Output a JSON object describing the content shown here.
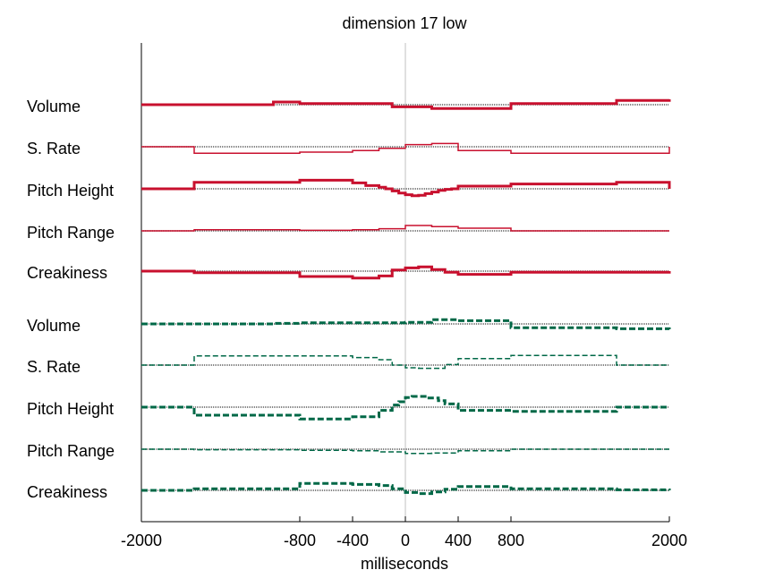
{
  "chart_data": {
    "type": "line",
    "title": "dimension 17 low",
    "xlabel": "milliseconds",
    "ylabel": "",
    "xlim": [
      -2000,
      2000
    ],
    "x_ticks": [
      -2000,
      -800,
      -400,
      0,
      400,
      800,
      2000
    ],
    "x_tick_labels": [
      "-2000",
      "-800",
      "-400",
      "0",
      "400",
      "800",
      "2000"
    ],
    "vertical_reference_line_at": 0,
    "colors": {
      "group1": "#c8102e",
      "group2": "#006847",
      "baseline": "#555555",
      "zero_line": "#c0c0c0"
    },
    "line_styles": {
      "group1": "solid",
      "group2": "dashed"
    },
    "series": [
      {
        "row": "Volume",
        "group": 1,
        "weight": "thick",
        "x": [
          -2000,
          -1000,
          -800,
          -100,
          200,
          800,
          1600,
          2000
        ],
        "values": [
          0,
          0.5,
          0.2,
          -0.4,
          -0.7,
          0.2,
          0.8,
          1.0
        ]
      },
      {
        "row": "S. Rate",
        "group": 1,
        "weight": "thin",
        "x": [
          -2000,
          -1600,
          -800,
          -400,
          -200,
          0,
          200,
          400,
          800,
          1600,
          2000
        ],
        "values": [
          0,
          -1.2,
          -1.0,
          -0.7,
          -0.3,
          0.4,
          0.6,
          -0.7,
          -1.2,
          -1.2,
          0
        ]
      },
      {
        "row": "Pitch Height",
        "group": 1,
        "weight": "thick",
        "x": [
          -2000,
          -1600,
          -800,
          -400,
          -300,
          -200,
          -150,
          -100,
          -50,
          0,
          50,
          100,
          150,
          200,
          250,
          300,
          350,
          400,
          800,
          1600,
          2000
        ],
        "values": [
          0,
          1.2,
          1.6,
          1.1,
          0.6,
          0.3,
          0.0,
          -0.4,
          -0.8,
          -1.1,
          -1.3,
          -1.2,
          -0.9,
          -0.6,
          -0.3,
          -0.1,
          0.0,
          0.5,
          0.9,
          1.2,
          0
        ]
      },
      {
        "row": "Pitch Range",
        "group": 1,
        "weight": "thin",
        "x": [
          -2000,
          -1600,
          -800,
          -400,
          -200,
          0,
          200,
          400,
          800,
          1600,
          2000
        ],
        "values": [
          0,
          0.2,
          0.1,
          0.2,
          0.4,
          1.0,
          0.8,
          0.5,
          0,
          0,
          0
        ]
      },
      {
        "row": "Creakiness",
        "group": 1,
        "weight": "thick",
        "x": [
          -2000,
          -1600,
          -800,
          -400,
          -200,
          -100,
          0,
          100,
          200,
          300,
          400,
          800,
          2000
        ],
        "values": [
          0,
          -0.3,
          -1.0,
          -1.3,
          -0.9,
          0.2,
          0.6,
          0.8,
          0.3,
          -0.2,
          -0.6,
          -0.2,
          0
        ]
      },
      {
        "row": "Volume",
        "group": 2,
        "weight": "thick",
        "x": [
          -2000,
          -1000,
          -800,
          0,
          200,
          400,
          800,
          1600,
          2000
        ],
        "values": [
          0,
          0.1,
          0.2,
          0.3,
          0.8,
          0.6,
          -0.7,
          -0.9,
          -1.0
        ]
      },
      {
        "row": "S. Rate",
        "group": 2,
        "weight": "thin",
        "x": [
          -2000,
          -1600,
          -400,
          -200,
          -100,
          0,
          100,
          300,
          400,
          800,
          1600,
          2000
        ],
        "values": [
          0,
          1.7,
          1.4,
          1.0,
          0,
          -0.5,
          -0.6,
          0.1,
          1.2,
          1.8,
          0,
          0
        ]
      },
      {
        "row": "Pitch Height",
        "group": 2,
        "weight": "thick",
        "x": [
          -2000,
          -1600,
          -800,
          -400,
          -200,
          -100,
          -50,
          0,
          50,
          150,
          250,
          300,
          400,
          800,
          1600,
          2000
        ],
        "values": [
          0,
          -1.5,
          -2.2,
          -1.8,
          -0.6,
          0.4,
          1.0,
          1.8,
          2.0,
          1.7,
          1.2,
          0.6,
          -0.6,
          -0.8,
          0,
          0
        ]
      },
      {
        "row": "Pitch Range",
        "group": 2,
        "weight": "thin",
        "x": [
          -2000,
          -1600,
          -800,
          -400,
          -200,
          0,
          200,
          400,
          800,
          1600,
          2000
        ],
        "values": [
          0,
          -0.1,
          -0.2,
          -0.3,
          -0.5,
          -0.8,
          -0.7,
          -0.3,
          0,
          0,
          0
        ]
      },
      {
        "row": "Creakiness",
        "group": 2,
        "weight": "thick",
        "x": [
          -2000,
          -1600,
          -800,
          -400,
          -200,
          -100,
          0,
          100,
          200,
          300,
          400,
          800,
          1600,
          2000
        ],
        "values": [
          0,
          0.3,
          1.3,
          1.1,
          0.9,
          0.3,
          -0.4,
          -0.6,
          -0.3,
          0.2,
          0.7,
          0.3,
          0.1,
          0
        ]
      }
    ]
  }
}
